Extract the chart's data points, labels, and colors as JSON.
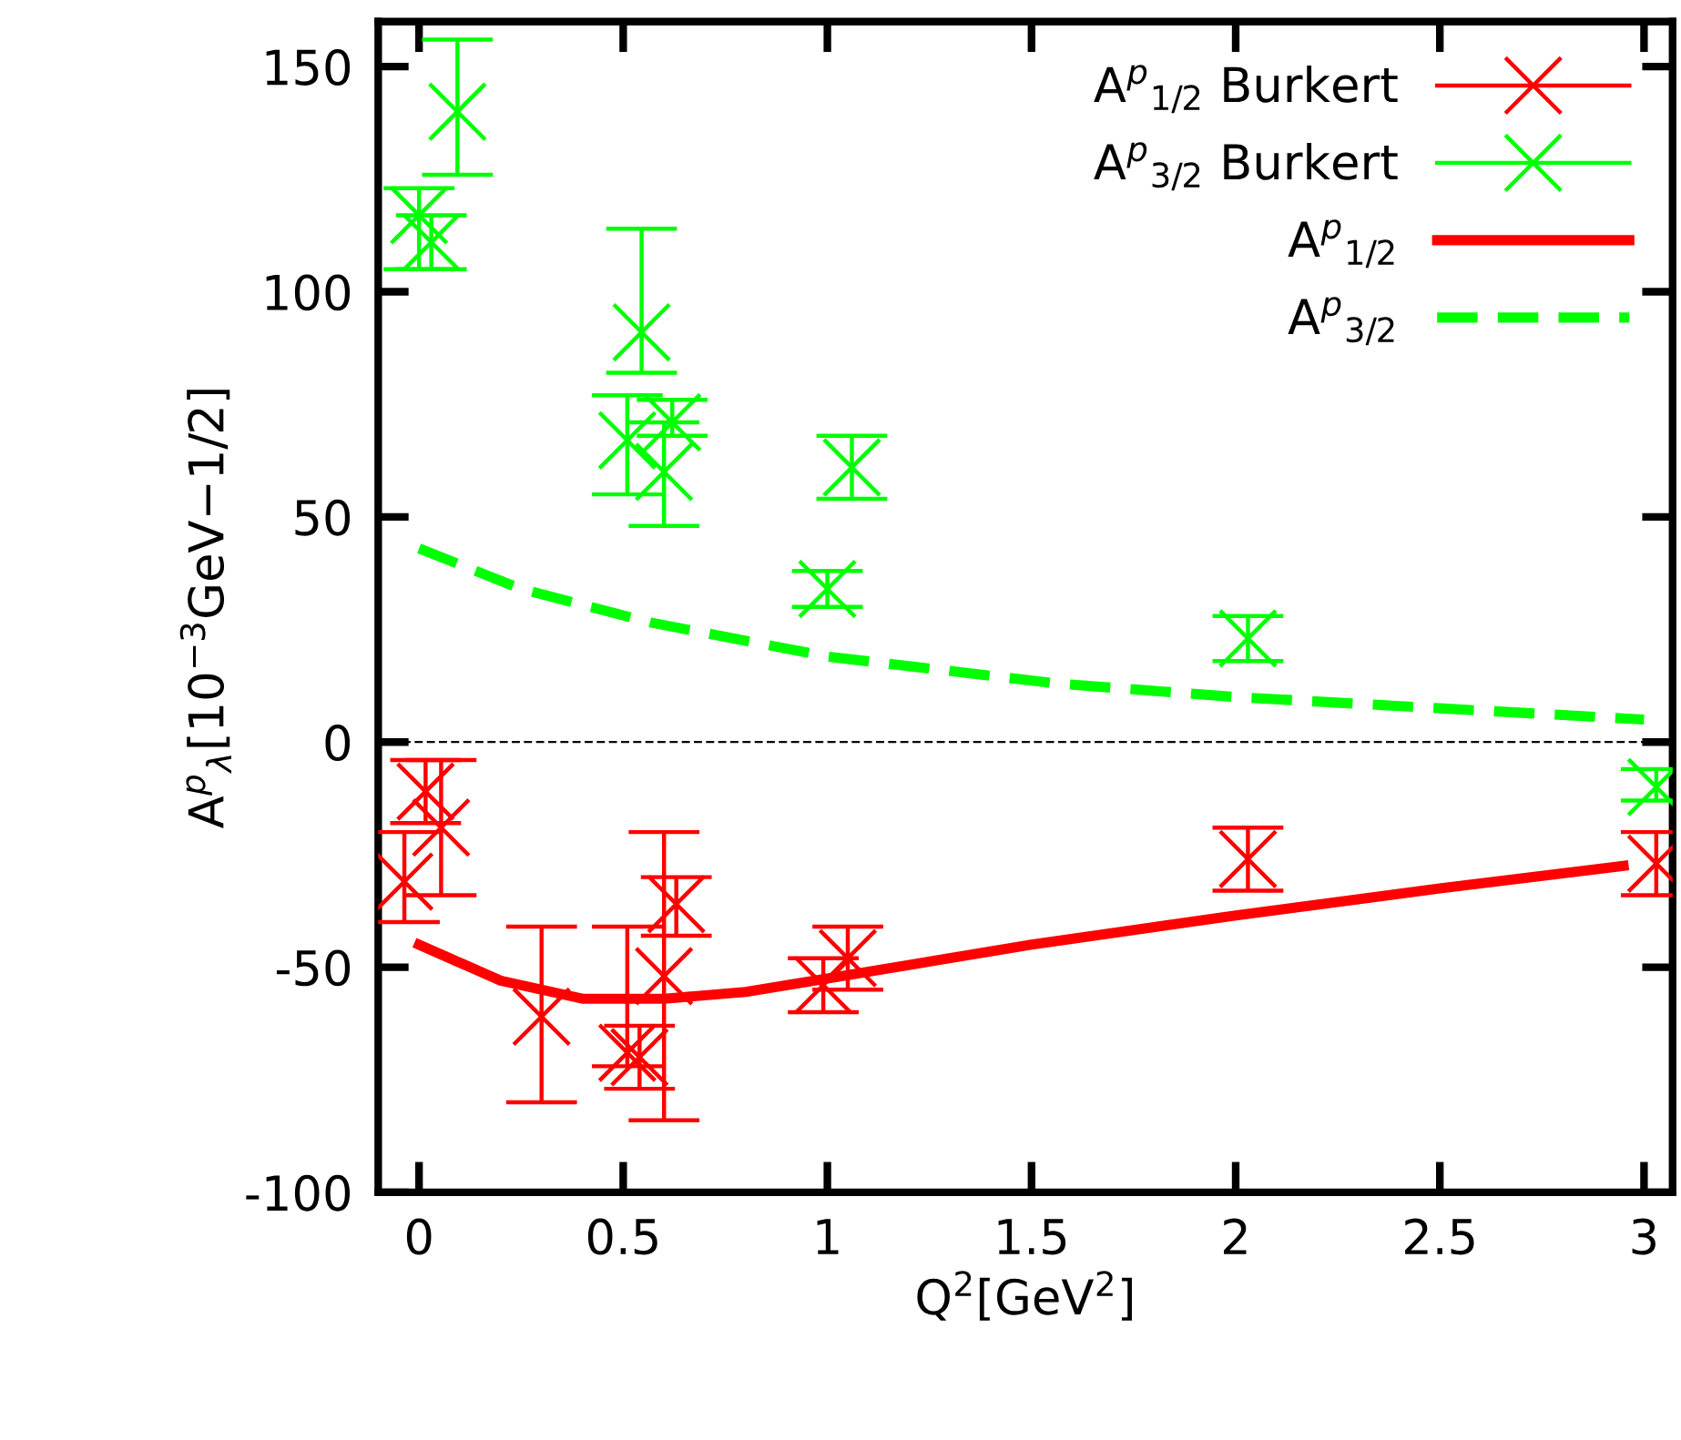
{
  "chart_data": {
    "type": "scatter",
    "xlabel": "Q$^{2}$[GeV$^{2}$]",
    "ylabel": "A$^{p}$$_{λ}$[10$^{−3}$GeV−1/2]",
    "xlim": [
      -0.1,
      3.07
    ],
    "ylim": [
      -100,
      160
    ],
    "xticks": [
      0,
      0.5,
      1,
      1.5,
      2,
      2.5,
      3
    ],
    "yticks": [
      -100,
      -50,
      0,
      50,
      100,
      150
    ],
    "grid": false,
    "legend": "top right",
    "ref_lines": [
      {
        "axis": "y",
        "value": 0,
        "color": "#000000",
        "line_style": "dashed"
      }
    ],
    "series": [
      {
        "name": "A$^{p}$$_{1/2}$ Burkert",
        "color": "#ff0000",
        "marker": "cross",
        "x": [
          -0.036,
          0.016,
          0.054,
          0.3,
          0.51,
          0.54,
          0.6,
          0.63,
          0.99,
          1.05,
          2.03,
          3.03
        ],
        "values": [
          -31,
          -11,
          -19,
          -61,
          -69,
          -70,
          -52,
          -36,
          -54,
          -48,
          -26,
          -27
        ],
        "errors": [
          [
            -40,
            -20
          ],
          [
            -18,
            -4
          ],
          [
            -34,
            -4
          ],
          [
            -80,
            -41
          ],
          [
            -72,
            -41
          ],
          [
            -77,
            -63
          ],
          [
            -84,
            -20
          ],
          [
            -43,
            -30
          ],
          [
            -60,
            -48
          ],
          [
            -55,
            -41
          ],
          [
            -33,
            -19
          ],
          [
            -34,
            -20
          ]
        ]
      },
      {
        "name": "A$^{p}$$_{3/2}$ Burkert",
        "color": "#00ff00",
        "marker": "cross",
        "x": [
          0.0,
          0.03,
          0.094,
          0.51,
          0.545,
          0.6,
          0.62,
          1.0,
          1.06,
          2.03,
          3.03
        ],
        "values": [
          117,
          111,
          140,
          67,
          91,
          60,
          71,
          34,
          61,
          23,
          -10
        ],
        "errors": [
          [
            105,
            123
          ],
          [
            105,
            117
          ],
          [
            126,
            156
          ],
          [
            55,
            77
          ],
          [
            82,
            114
          ],
          [
            48,
            71
          ],
          [
            68,
            76
          ],
          [
            30,
            38
          ],
          [
            54,
            68
          ],
          [
            18,
            28
          ],
          [
            -13,
            -6
          ]
        ]
      },
      {
        "name": "A$^{p}$$_{1/2}$",
        "type": "line",
        "color": "#ff0000",
        "line_style": "solid",
        "marker": "none",
        "x": [
          0,
          0.2,
          0.4,
          0.6,
          0.8,
          1.0,
          1.5,
          2.0,
          2.5,
          2.95
        ],
        "values": [
          -45,
          -53,
          -57,
          -57,
          -55.5,
          -52.5,
          -45,
          -38.5,
          -32.5,
          -27.5
        ]
      },
      {
        "name": "A$^{p}$$_{3/2}$",
        "type": "line",
        "color": "#00ff00",
        "line_style": "dashed",
        "marker": "none",
        "x": [
          0,
          0.25,
          0.57,
          1.0,
          1.56,
          2.0,
          2.5,
          3.0
        ],
        "values": [
          43,
          34,
          26.5,
          19,
          13,
          10,
          7.5,
          5
        ]
      }
    ]
  }
}
